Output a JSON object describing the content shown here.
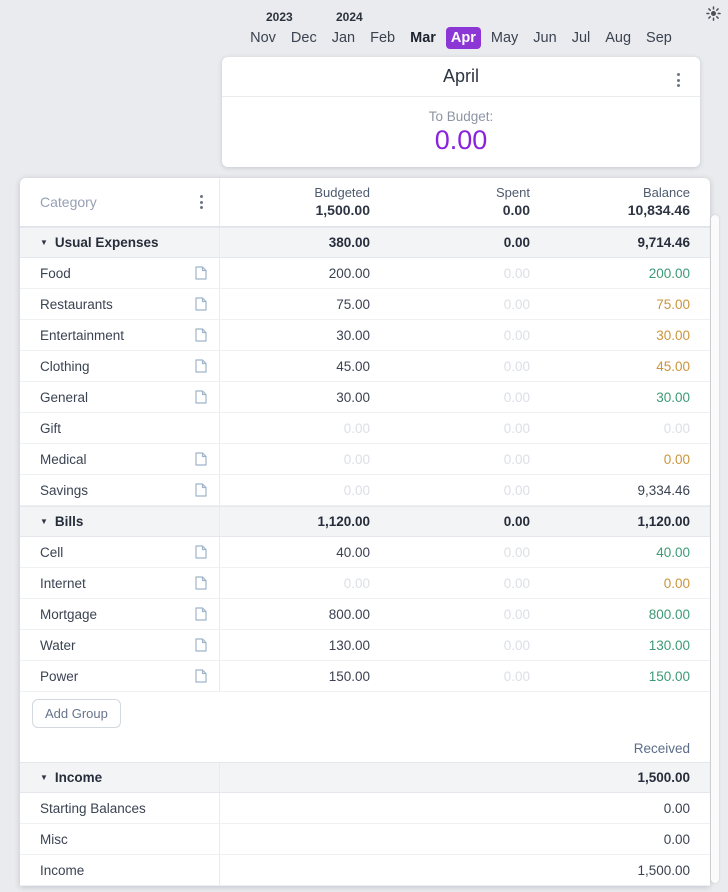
{
  "topbar": {
    "theme_icon": "sun"
  },
  "month_picker": {
    "years": [
      "2023",
      "2024"
    ],
    "months": [
      {
        "label": "Nov"
      },
      {
        "label": "Dec"
      },
      {
        "label": "Jan"
      },
      {
        "label": "Feb"
      },
      {
        "label": "Mar",
        "bold": true
      },
      {
        "label": "Apr",
        "selected": true
      },
      {
        "label": "May"
      },
      {
        "label": "Jun"
      },
      {
        "label": "Jul"
      },
      {
        "label": "Aug"
      },
      {
        "label": "Sep"
      }
    ]
  },
  "month_card": {
    "title": "April",
    "to_budget_label": "To Budget:",
    "to_budget_value": "0.00"
  },
  "table": {
    "category_header": "Category",
    "summary": {
      "budgeted_label": "Budgeted",
      "budgeted_value": "1,500.00",
      "spent_label": "Spent",
      "spent_value": "0.00",
      "balance_label": "Balance",
      "balance_value": "10,834.46"
    },
    "expense_groups": [
      {
        "name": "Usual Expenses",
        "budgeted": "380.00",
        "spent": "0.00",
        "balance": "9,714.46",
        "rows": [
          {
            "name": "Food",
            "note": true,
            "budgeted": "200.00",
            "budgeted_muted": false,
            "spent": "0.00",
            "spent_muted": true,
            "balance": "200.00",
            "balance_color": "green"
          },
          {
            "name": "Restaurants",
            "note": true,
            "budgeted": "75.00",
            "budgeted_muted": false,
            "spent": "0.00",
            "spent_muted": true,
            "balance": "75.00",
            "balance_color": "orange"
          },
          {
            "name": "Entertainment",
            "note": true,
            "budgeted": "30.00",
            "budgeted_muted": false,
            "spent": "0.00",
            "spent_muted": true,
            "balance": "30.00",
            "balance_color": "orange"
          },
          {
            "name": "Clothing",
            "note": true,
            "budgeted": "45.00",
            "budgeted_muted": false,
            "spent": "0.00",
            "spent_muted": true,
            "balance": "45.00",
            "balance_color": "orange"
          },
          {
            "name": "General",
            "note": true,
            "budgeted": "30.00",
            "budgeted_muted": false,
            "spent": "0.00",
            "spent_muted": true,
            "balance": "30.00",
            "balance_color": "green"
          },
          {
            "name": "Gift",
            "note": false,
            "budgeted": "0.00",
            "budgeted_muted": true,
            "spent": "0.00",
            "spent_muted": true,
            "balance": "0.00",
            "balance_color": "muted"
          },
          {
            "name": "Medical",
            "note": true,
            "budgeted": "0.00",
            "budgeted_muted": true,
            "spent": "0.00",
            "spent_muted": true,
            "balance": "0.00",
            "balance_color": "orange"
          },
          {
            "name": "Savings",
            "note": true,
            "budgeted": "0.00",
            "budgeted_muted": true,
            "spent": "0.00",
            "spent_muted": true,
            "balance": "9,334.46",
            "balance_color": "dark"
          }
        ]
      },
      {
        "name": "Bills",
        "budgeted": "1,120.00",
        "spent": "0.00",
        "balance": "1,120.00",
        "rows": [
          {
            "name": "Cell",
            "note": true,
            "budgeted": "40.00",
            "budgeted_muted": false,
            "spent": "0.00",
            "spent_muted": true,
            "balance": "40.00",
            "balance_color": "green"
          },
          {
            "name": "Internet",
            "note": true,
            "budgeted": "0.00",
            "budgeted_muted": true,
            "spent": "0.00",
            "spent_muted": true,
            "balance": "0.00",
            "balance_color": "orange"
          },
          {
            "name": "Mortgage",
            "note": true,
            "budgeted": "800.00",
            "budgeted_muted": false,
            "spent": "0.00",
            "spent_muted": true,
            "balance": "800.00",
            "balance_color": "green"
          },
          {
            "name": "Water",
            "note": true,
            "budgeted": "130.00",
            "budgeted_muted": false,
            "spent": "0.00",
            "spent_muted": true,
            "balance": "130.00",
            "balance_color": "green"
          },
          {
            "name": "Power",
            "note": true,
            "budgeted": "150.00",
            "budgeted_muted": false,
            "spent": "0.00",
            "spent_muted": true,
            "balance": "150.00",
            "balance_color": "green"
          }
        ]
      }
    ],
    "add_group_label": "Add Group",
    "received_label": "Received",
    "income_group": {
      "name": "Income",
      "received": "1,500.00",
      "rows": [
        {
          "name": "Starting Balances",
          "received": "0.00"
        },
        {
          "name": "Misc",
          "received": "0.00"
        },
        {
          "name": "Income",
          "received": "1,500.00"
        }
      ]
    }
  },
  "colors": {
    "accent_purple": "#8a22dd",
    "selected_month_purple": "#8c36d6",
    "positive_green": "#3d9a76",
    "warning_orange": "#c9953c",
    "muted_zero": "#dbdfe4"
  }
}
